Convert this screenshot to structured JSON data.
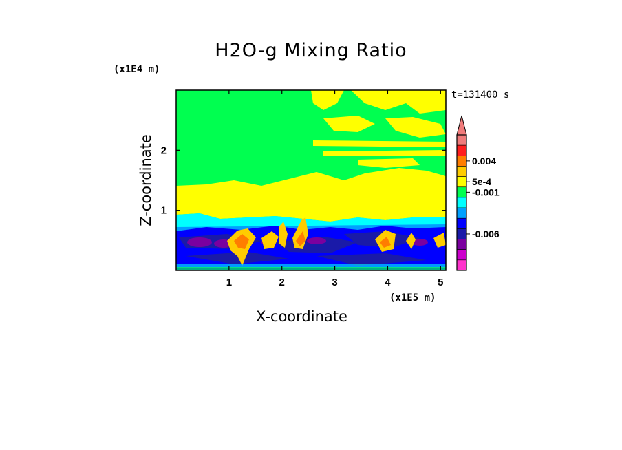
{
  "chart_data": {
    "type": "heatmap",
    "title": "H2O-g Mixing Ratio",
    "xlabel": "X-coordinate",
    "ylabel": "Z-coordinate",
    "x_unit": "(x1E5 m)",
    "y_unit": "(x1E4 m)",
    "time_label": "t=131400 s",
    "xlim": [
      0,
      5.1
    ],
    "ylim": [
      0,
      3.0
    ],
    "xticks": [
      "1",
      "2",
      "3",
      "4",
      "5"
    ],
    "yticks": [
      "1",
      "2"
    ],
    "colorbar": {
      "labels": [
        "0.004",
        "5e-4",
        "-0.001",
        "-0.006"
      ],
      "colors": [
        "#f07b7b",
        "#ff1e1e",
        "#ff7d00",
        "#ffcc00",
        "#ffff00",
        "#00ff50",
        "#00ffff",
        "#00a0ff",
        "#0000ff",
        "#1a1aa8",
        "#7a009f",
        "#cc00cc",
        "#ff33cc"
      ],
      "extend_top": true
    },
    "regions": [
      {
        "level": "above 5e-4 (yellow patches aloft)",
        "color": "#ffff00"
      },
      {
        "level": "near 0 (background)",
        "color": "#00ff50"
      },
      {
        "level": "below -0.001 (blue low levels)",
        "color": "#0000ff"
      },
      {
        "level": "-0.006 (purple cores)",
        "color": "#7a009f"
      },
      {
        "level": "0.004 (orange plumes)",
        "color": "#ff7d00"
      }
    ]
  }
}
